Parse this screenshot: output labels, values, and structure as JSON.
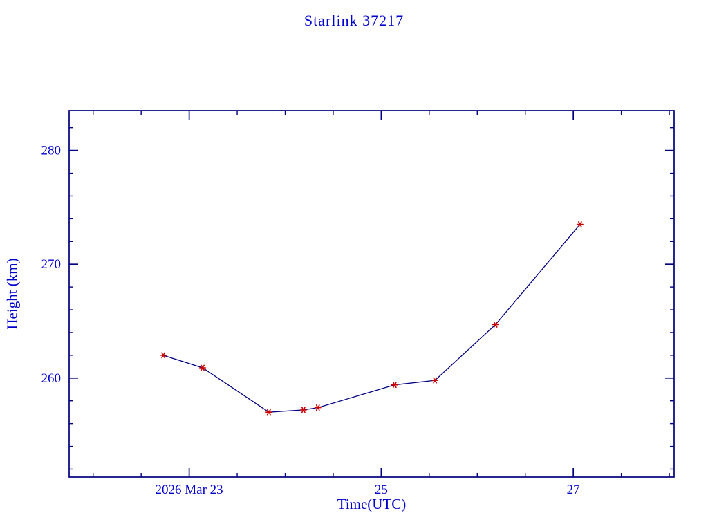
{
  "chart_data": {
    "type": "line",
    "title": "Starlink 37217",
    "xlabel": "Time(UTC)",
    "ylabel": "Height (km)",
    "x_unit": "day of 2026 Mar",
    "x": [
      22.73,
      23.14,
      23.83,
      24.19,
      24.34,
      25.14,
      25.56,
      26.19,
      27.07
    ],
    "y": [
      262.0,
      260.9,
      257.0,
      257.2,
      257.4,
      259.4,
      259.8,
      264.7,
      273.5
    ],
    "xlim": [
      21.75,
      28.05
    ],
    "ylim": [
      251.3,
      283.5
    ],
    "x_ticks": [
      {
        "value": 23,
        "label": "2026 Mar 23"
      },
      {
        "value": 25,
        "label": "25"
      },
      {
        "value": 27,
        "label": "27"
      }
    ],
    "y_ticks": [
      {
        "value": 260,
        "label": "260"
      },
      {
        "value": 270,
        "label": "270"
      },
      {
        "value": 280,
        "label": "280"
      }
    ],
    "x_minor_step": 0.5,
    "y_minor_step": 2,
    "grid": false,
    "legend": "none",
    "marker": "asterisk",
    "colors": {
      "line": "#000080",
      "marker": "#cc0000",
      "axis": "#000080",
      "text": "#0000cd"
    }
  }
}
